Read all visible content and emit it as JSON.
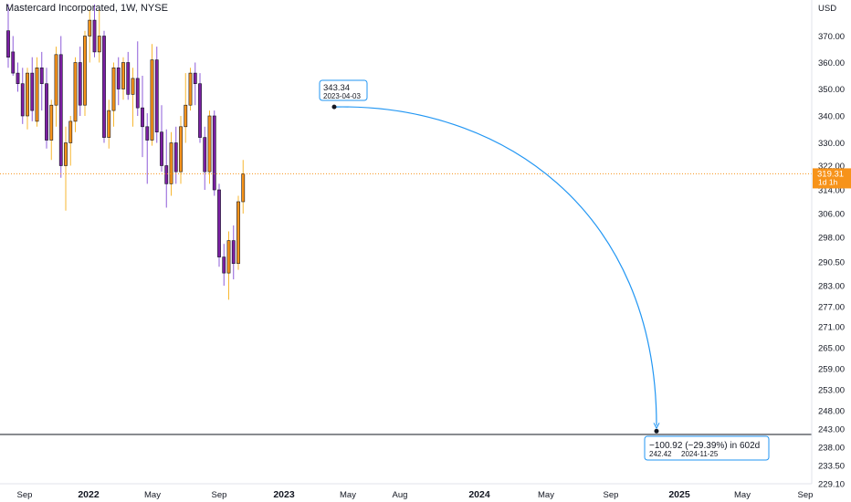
{
  "header": {
    "title": "Mastercard Incorporated, 1W, NYSE",
    "currency": "USD"
  },
  "price_tag": {
    "price": "319.31",
    "countdown": "1d 1h",
    "color": "#f7931a"
  },
  "annotation": {
    "start_price": "343.34",
    "start_date": "2023-04-03",
    "change_text": "−100.92 (−29.39%) in 602d",
    "end_price": "242.42",
    "end_date": "2024-11-25",
    "color": "#2196f3"
  },
  "colors": {
    "up": "#f7931a",
    "down": "#7b1fa2",
    "wick_up": "#f7b731",
    "wick_down": "#8e5cd9",
    "axis_text": "#131722",
    "horizontal_line": "#131722"
  },
  "chart_data": {
    "type": "candlestick",
    "y_ticks": [
      "370.00",
      "360.00",
      "350.00",
      "340.00",
      "330.00",
      "322.00",
      "314.00",
      "306.00",
      "298.00",
      "290.50",
      "283.00",
      "277.00",
      "271.00",
      "265.00",
      "259.00",
      "253.00",
      "248.00",
      "243.00",
      "238.00",
      "233.50",
      "229.10"
    ],
    "x_ticks": [
      "Sep",
      "2022",
      "May",
      "Sep",
      "2023",
      "May",
      "Aug",
      "2024",
      "May",
      "Sep",
      "2025",
      "May",
      "Sep"
    ],
    "horizontal_level": 241.5,
    "last_price": 319.31,
    "candles": [
      {
        "o": 372,
        "h": 382,
        "l": 358,
        "c": 362
      },
      {
        "o": 364,
        "h": 370,
        "l": 355,
        "c": 356
      },
      {
        "o": 356,
        "h": 360,
        "l": 349,
        "c": 352
      },
      {
        "o": 352,
        "h": 358,
        "l": 337,
        "c": 340
      },
      {
        "o": 340,
        "h": 358,
        "l": 335,
        "c": 356
      },
      {
        "o": 356,
        "h": 362,
        "l": 338,
        "c": 342
      },
      {
        "o": 338,
        "h": 362,
        "l": 336,
        "c": 358
      },
      {
        "o": 358,
        "h": 364,
        "l": 342,
        "c": 352
      },
      {
        "o": 352,
        "h": 358,
        "l": 328,
        "c": 331
      },
      {
        "o": 331,
        "h": 346,
        "l": 324,
        "c": 344
      },
      {
        "o": 344,
        "h": 366,
        "l": 336,
        "c": 363
      },
      {
        "o": 363,
        "h": 370,
        "l": 318,
        "c": 322
      },
      {
        "o": 322,
        "h": 336,
        "l": 307,
        "c": 330
      },
      {
        "o": 330,
        "h": 340,
        "l": 322,
        "c": 338
      },
      {
        "o": 338,
        "h": 362,
        "l": 334,
        "c": 360
      },
      {
        "o": 360,
        "h": 366,
        "l": 340,
        "c": 344
      },
      {
        "o": 344,
        "h": 372,
        "l": 340,
        "c": 370
      },
      {
        "o": 370,
        "h": 380,
        "l": 360,
        "c": 376
      },
      {
        "o": 376,
        "h": 382,
        "l": 362,
        "c": 364
      },
      {
        "o": 364,
        "h": 380,
        "l": 360,
        "c": 370
      },
      {
        "o": 370,
        "h": 372,
        "l": 330,
        "c": 332
      },
      {
        "o": 332,
        "h": 346,
        "l": 328,
        "c": 342
      },
      {
        "o": 342,
        "h": 360,
        "l": 336,
        "c": 358
      },
      {
        "o": 358,
        "h": 362,
        "l": 344,
        "c": 350
      },
      {
        "o": 350,
        "h": 362,
        "l": 346,
        "c": 360
      },
      {
        "o": 360,
        "h": 364,
        "l": 346,
        "c": 348
      },
      {
        "o": 348,
        "h": 358,
        "l": 336,
        "c": 354
      },
      {
        "o": 354,
        "h": 368,
        "l": 340,
        "c": 343
      },
      {
        "o": 343,
        "h": 355,
        "l": 325,
        "c": 336
      },
      {
        "o": 336,
        "h": 341,
        "l": 316,
        "c": 331
      },
      {
        "o": 331,
        "h": 367,
        "l": 329,
        "c": 361
      },
      {
        "o": 361,
        "h": 366,
        "l": 330,
        "c": 334
      },
      {
        "o": 334,
        "h": 344,
        "l": 320,
        "c": 322
      },
      {
        "o": 322,
        "h": 335,
        "l": 308,
        "c": 316
      },
      {
        "o": 316,
        "h": 334,
        "l": 312,
        "c": 330
      },
      {
        "o": 330,
        "h": 336,
        "l": 316,
        "c": 320
      },
      {
        "o": 320,
        "h": 340,
        "l": 316,
        "c": 336
      },
      {
        "o": 336,
        "h": 356,
        "l": 330,
        "c": 344
      },
      {
        "o": 344,
        "h": 358,
        "l": 342,
        "c": 356
      },
      {
        "o": 356,
        "h": 360,
        "l": 344,
        "c": 352
      },
      {
        "o": 352,
        "h": 356,
        "l": 330,
        "c": 332
      },
      {
        "o": 332,
        "h": 336,
        "l": 314,
        "c": 320
      },
      {
        "o": 320,
        "h": 342,
        "l": 316,
        "c": 340
      },
      {
        "o": 340,
        "h": 342,
        "l": 312,
        "c": 314
      },
      {
        "o": 314,
        "h": 316,
        "l": 289,
        "c": 292
      },
      {
        "o": 292,
        "h": 296,
        "l": 283,
        "c": 287
      },
      {
        "o": 287,
        "h": 300,
        "l": 279,
        "c": 297
      },
      {
        "o": 297,
        "h": 302,
        "l": 285,
        "c": 290
      },
      {
        "o": 290,
        "h": 312,
        "l": 288,
        "c": 310
      },
      {
        "o": 310,
        "h": 324,
        "l": 306,
        "c": 319.31
      }
    ]
  }
}
